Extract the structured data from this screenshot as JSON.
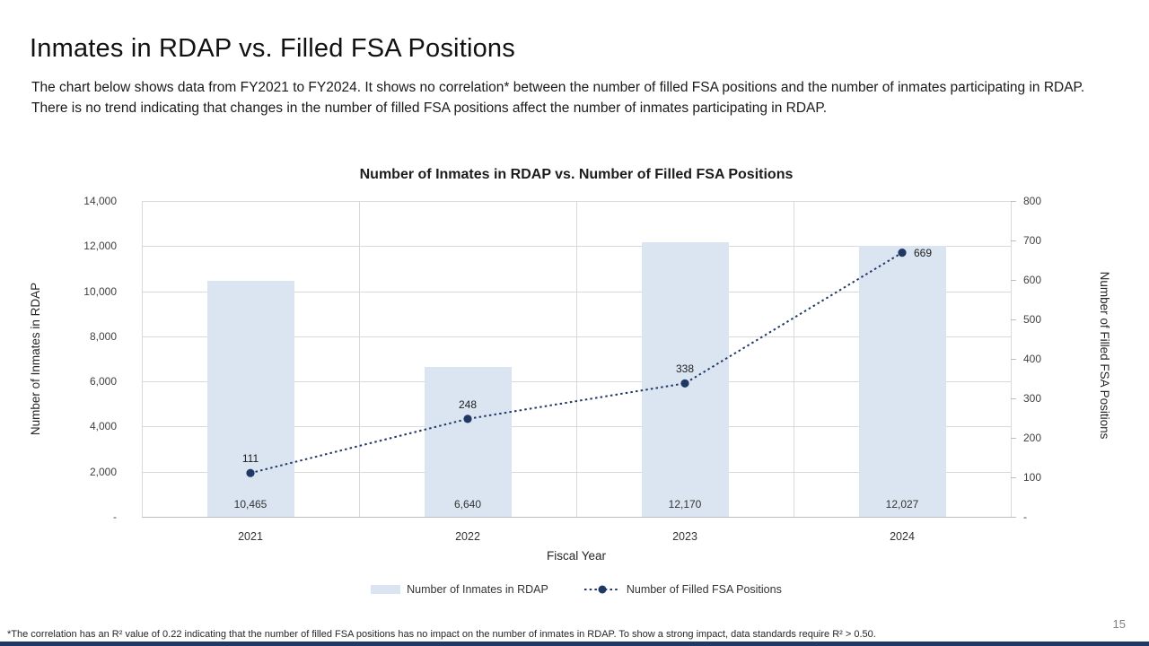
{
  "slide": {
    "title": "Inmates in RDAP vs. Filled FSA Positions",
    "description": "The chart below shows data from FY2021 to FY2024. It shows no correlation* between the number of filled FSA positions and the number of inmates participating in RDAP. There is no trend indicating that changes in the number of filled FSA positions affect the number of inmates participating in RDAP.",
    "footnote": "*The correlation has an R² value of 0.22 indicating that the number of filled FSA positions has no impact on the number of inmates in RDAP. To show a strong impact, data standards require R² > 0.50.",
    "page_number": "15"
  },
  "chart_data": {
    "type": "combo-bar-line",
    "title": "Number of Inmates in RDAP vs. Number of Filled FSA Positions",
    "categories": [
      "2021",
      "2022",
      "2023",
      "2024"
    ],
    "xlabel": "Fiscal Year",
    "grid": true,
    "legend_position": "bottom",
    "left_axis": {
      "title": "Number of Inmates in RDAP",
      "min": 0,
      "max": 14000,
      "step": 2000,
      "tick_labels": [
        "14,000",
        "12,000",
        "10,000",
        "8,000",
        "6,000",
        "4,000",
        "2,000",
        "-"
      ]
    },
    "right_axis": {
      "title": "Number of Filled FSA Positions",
      "min": 0,
      "max": 800,
      "step": 100,
      "tick_labels": [
        "800",
        "700",
        "600",
        "500",
        "400",
        "300",
        "200",
        "100",
        "-"
      ]
    },
    "series": [
      {
        "name": "Number of Inmates in RDAP",
        "type": "bar",
        "axis": "left",
        "values": [
          10465,
          6640,
          12170,
          12027
        ],
        "labels": [
          "10,465",
          "6,640",
          "12,170",
          "12,027"
        ]
      },
      {
        "name": "Number of Filled FSA Positions",
        "type": "line",
        "axis": "right",
        "line_style": "dotted",
        "marker": "circle",
        "values": [
          111,
          248,
          338,
          669
        ],
        "labels": [
          "111",
          "248",
          "338",
          "669"
        ],
        "label_position": [
          "above",
          "above",
          "above",
          "right"
        ]
      }
    ]
  },
  "colors": {
    "bar_fill": "#dbe5f2",
    "line": "#1f3864",
    "grid": "#d9d9d9",
    "axis_line": "#bfbfbf",
    "footer_bar": "#1f3864",
    "page_number": "#808080"
  }
}
